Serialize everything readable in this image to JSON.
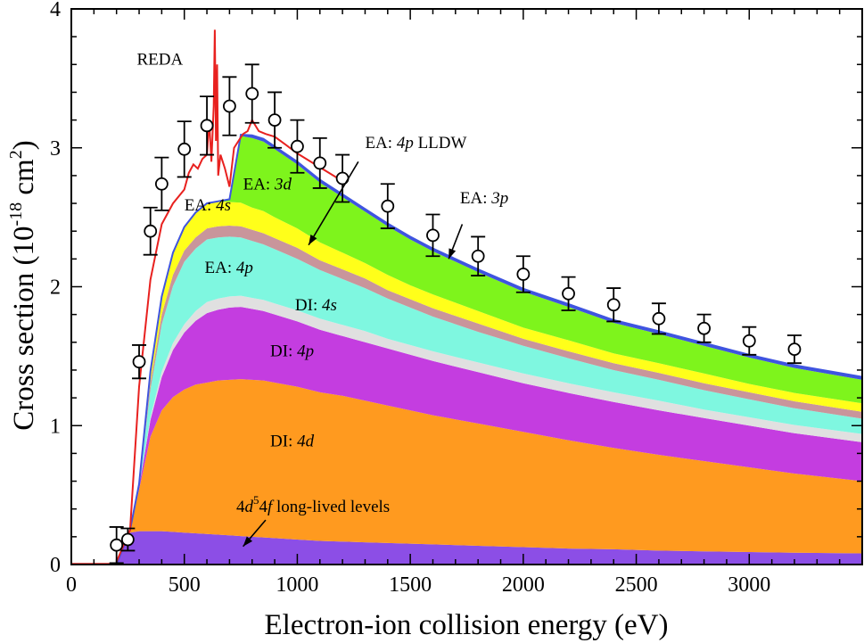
{
  "chart_data": {
    "type": "area",
    "xlabel": "Electron-ion collision energy (eV)",
    "ylabel_main": "Cross section (10",
    "ylabel_exp1": "-18",
    "ylabel_mid": " cm",
    "ylabel_exp2": "2",
    "ylabel_end": ")",
    "xlim": [
      0,
      3500
    ],
    "ylim": [
      0,
      4
    ],
    "xticks": [
      0,
      500,
      1000,
      1500,
      2000,
      2500,
      3000
    ],
    "yticks": [
      0,
      1,
      2,
      3,
      4
    ],
    "grid": false,
    "x": [
      200,
      260,
      300,
      350,
      400,
      450,
      500,
      550,
      600,
      650,
      700,
      750,
      800,
      850,
      900,
      1000,
      1100,
      1200,
      1300,
      1400,
      1500,
      1600,
      1800,
      2000,
      2200,
      2400,
      2600,
      2800,
      3000,
      3200,
      3500
    ],
    "stack_layers": [
      {
        "label": "4d⁵4f long-lived levels",
        "color": "#8c4ee6",
        "values": [
          0,
          0.23,
          0.24,
          0.24,
          0.24,
          0.235,
          0.23,
          0.225,
          0.22,
          0.215,
          0.21,
          0.205,
          0.2,
          0.195,
          0.19,
          0.18,
          0.17,
          0.165,
          0.16,
          0.155,
          0.15,
          0.145,
          0.135,
          0.125,
          0.115,
          0.11,
          0.1,
          0.095,
          0.09,
          0.085,
          0.08
        ]
      },
      {
        "label": "DI: 4d",
        "color": "#ff9a1f",
        "values": [
          0,
          0.02,
          0.3,
          0.68,
          0.87,
          0.97,
          1.03,
          1.07,
          1.09,
          1.11,
          1.12,
          1.13,
          1.13,
          1.13,
          1.12,
          1.1,
          1.07,
          1.05,
          1.02,
          0.99,
          0.96,
          0.93,
          0.88,
          0.83,
          0.78,
          0.73,
          0.69,
          0.65,
          0.61,
          0.57,
          0.52
        ]
      },
      {
        "label": "DI: 4p",
        "color": "#c43de0",
        "values": [
          0,
          0,
          0.02,
          0.12,
          0.24,
          0.34,
          0.41,
          0.46,
          0.5,
          0.51,
          0.52,
          0.52,
          0.51,
          0.5,
          0.49,
          0.47,
          0.45,
          0.43,
          0.42,
          0.41,
          0.4,
          0.39,
          0.37,
          0.35,
          0.34,
          0.33,
          0.32,
          0.31,
          0.3,
          0.29,
          0.28
        ]
      },
      {
        "label": "DI: 4s",
        "color": "#e0e0e0",
        "values": [
          0,
          0,
          0,
          0.02,
          0.04,
          0.05,
          0.06,
          0.07,
          0.08,
          0.08,
          0.08,
          0.08,
          0.08,
          0.08,
          0.08,
          0.08,
          0.08,
          0.08,
          0.08,
          0.07,
          0.07,
          0.07,
          0.07,
          0.07,
          0.07,
          0.07,
          0.07,
          0.06,
          0.06,
          0.06,
          0.06
        ]
      },
      {
        "label": "EA: 4p",
        "color": "#7ff7e0",
        "values": [
          0,
          0,
          0.01,
          0.2,
          0.34,
          0.41,
          0.45,
          0.45,
          0.45,
          0.44,
          0.43,
          0.42,
          0.41,
          0.4,
          0.39,
          0.37,
          0.35,
          0.33,
          0.31,
          0.29,
          0.27,
          0.25,
          0.22,
          0.2,
          0.18,
          0.16,
          0.15,
          0.14,
          0.13,
          0.12,
          0.11
        ]
      },
      {
        "label": "EA: 4p LLDW",
        "color": "#c9959b",
        "values": [
          0,
          0,
          0.01,
          0.05,
          0.07,
          0.08,
          0.08,
          0.08,
          0.08,
          0.08,
          0.08,
          0.08,
          0.08,
          0.08,
          0.08,
          0.08,
          0.07,
          0.07,
          0.07,
          0.06,
          0.06,
          0.06,
          0.06,
          0.05,
          0.05,
          0.05,
          0.05,
          0.05,
          0.05,
          0.05,
          0.05
        ]
      },
      {
        "label": "EA: 4s",
        "color": "#ffff1a",
        "values": [
          0,
          0,
          0,
          0.08,
          0.13,
          0.16,
          0.17,
          0.18,
          0.18,
          0.18,
          0.17,
          0.17,
          0.16,
          0.16,
          0.15,
          0.14,
          0.13,
          0.12,
          0.11,
          0.11,
          0.1,
          0.1,
          0.09,
          0.08,
          0.08,
          0.07,
          0.07,
          0.07,
          0.06,
          0.06,
          0.06
        ]
      },
      {
        "label": "EA: 3d",
        "color": "#7ef41c",
        "values": [
          0,
          0,
          0,
          0,
          0,
          0,
          0,
          0,
          0,
          0,
          0.02,
          0.48,
          0.5,
          0.5,
          0.49,
          0.46,
          0.43,
          0.4,
          0.37,
          0.35,
          0.33,
          0.31,
          0.28,
          0.26,
          0.24,
          0.22,
          0.21,
          0.2,
          0.19,
          0.18,
          0.17
        ]
      },
      {
        "label": "EA: 3p",
        "color": "#3f54e0",
        "values": [
          0,
          0,
          0,
          0,
          0,
          0,
          0,
          0,
          0,
          0,
          0,
          0.01,
          0.02,
          0.02,
          0.02,
          0.02,
          0.02,
          0.02,
          0.02,
          0.02,
          0.02,
          0.02,
          0.02,
          0.02,
          0.02,
          0.02,
          0.02,
          0.02,
          0.02,
          0.02,
          0.02
        ]
      }
    ],
    "reda_line": {
      "label": "REDA",
      "color": "#e8211f",
      "x": [
        200,
        260,
        300,
        350,
        400,
        450,
        500,
        520,
        540,
        560,
        580,
        600,
        610,
        620,
        630,
        635,
        640,
        645,
        650,
        660,
        670,
        680,
        700,
        720,
        740,
        760,
        780,
        800,
        830,
        860,
        900,
        950,
        1000,
        1100,
        1200
      ],
      "y": [
        0.02,
        0.25,
        1.28,
        2.05,
        2.45,
        2.6,
        2.7,
        2.82,
        2.88,
        2.85,
        2.92,
        2.95,
        3.2,
        2.9,
        3.3,
        3.85,
        3.05,
        3.6,
        2.8,
        2.95,
        2.9,
        2.85,
        2.72,
        3.0,
        3.05,
        3.1,
        3.12,
        3.2,
        3.12,
        3.1,
        3.08,
        3.02,
        2.96,
        2.86,
        2.76
      ]
    },
    "measured": {
      "marker": "open-circle",
      "x": [
        200,
        250,
        300,
        350,
        400,
        500,
        600,
        700,
        800,
        900,
        1000,
        1100,
        1200,
        1400,
        1600,
        1800,
        2000,
        2200,
        2400,
        2600,
        2800,
        3000,
        3200
      ],
      "y": [
        0.14,
        0.18,
        1.46,
        2.4,
        2.74,
        2.99,
        3.16,
        3.3,
        3.39,
        3.2,
        3.01,
        2.89,
        2.78,
        2.58,
        2.37,
        2.22,
        2.09,
        1.95,
        1.87,
        1.77,
        1.7,
        1.61,
        1.55
      ],
      "err": [
        0.13,
        0.08,
        0.12,
        0.17,
        0.19,
        0.2,
        0.21,
        0.21,
        0.21,
        0.2,
        0.19,
        0.18,
        0.17,
        0.16,
        0.15,
        0.14,
        0.13,
        0.12,
        0.12,
        0.11,
        0.1,
        0.1,
        0.1
      ]
    },
    "annotations": [
      {
        "label": "REDA",
        "italic": "",
        "suffix": "",
        "x": 290,
        "y": 3.6
      },
      {
        "label": "EA: ",
        "italic": "4p",
        "suffix": " LLDW",
        "x": 1300,
        "y": 3.0
      },
      {
        "label": "EA: ",
        "italic": "3d",
        "suffix": "",
        "x": 760,
        "y": 2.7
      },
      {
        "label": "EA: ",
        "italic": "3p",
        "suffix": "",
        "x": 1720,
        "y": 2.6
      },
      {
        "label": "EA: ",
        "italic": "4s",
        "suffix": "",
        "x": 500,
        "y": 2.55
      },
      {
        "label": "EA: ",
        "italic": "4p",
        "suffix": "",
        "x": 590,
        "y": 2.1
      },
      {
        "label": "DI: ",
        "italic": "4s",
        "suffix": "",
        "x": 990,
        "y": 1.83
      },
      {
        "label": "DI: ",
        "italic": "4p",
        "suffix": "",
        "x": 880,
        "y": 1.5
      },
      {
        "label": "DI: ",
        "italic": "4d",
        "suffix": "",
        "x": 880,
        "y": 0.85
      },
      {
        "label": "4",
        "italic": "d",
        "sup": "5",
        "label2": "4",
        "italic2": "f",
        "suffix": " long-lived levels",
        "x": 730,
        "y": 0.38
      }
    ],
    "arrows": [
      {
        "from": [
          1270,
          2.9
        ],
        "to": [
          1050,
          2.3
        ]
      },
      {
        "from": [
          1730,
          2.45
        ],
        "to": [
          1670,
          2.2
        ]
      },
      {
        "from": [
          860,
          0.32
        ],
        "to": [
          760,
          0.13
        ]
      }
    ]
  }
}
